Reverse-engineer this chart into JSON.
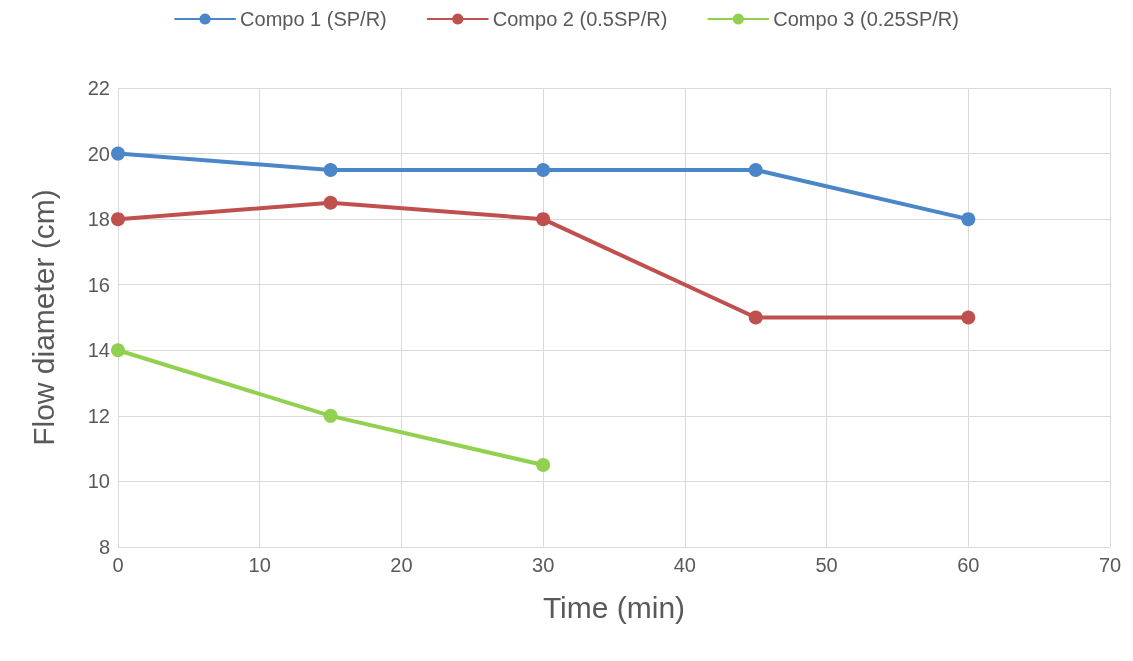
{
  "chart_data": {
    "type": "line",
    "xlabel": "Time (min)",
    "ylabel": "Flow diameter (cm)",
    "xlim": [
      0,
      70
    ],
    "xticks": [
      0,
      10,
      20,
      30,
      40,
      50,
      60,
      70
    ],
    "ylim": [
      8,
      22
    ],
    "yticks": [
      8,
      10,
      12,
      14,
      16,
      18,
      20,
      22
    ],
    "grid": true,
    "legend": "top",
    "marker": "circle",
    "line_style": "solid",
    "series": [
      {
        "name": "Compo 1 (SP/R)",
        "color": "#4a86c8",
        "x": [
          0,
          15,
          30,
          45,
          60
        ],
        "values": [
          20,
          19.5,
          19.5,
          19.5,
          18
        ]
      },
      {
        "name": "Compo 2 (0.5SP/R)",
        "color": "#c0504d",
        "x": [
          0,
          15,
          30,
          45,
          60
        ],
        "values": [
          18,
          18.5,
          18,
          15,
          15
        ]
      },
      {
        "name": "Compo 3 (0.25SP/R)",
        "color": "#92d050",
        "x": [
          0,
          15,
          30
        ],
        "values": [
          14,
          12,
          10.5
        ]
      }
    ]
  }
}
